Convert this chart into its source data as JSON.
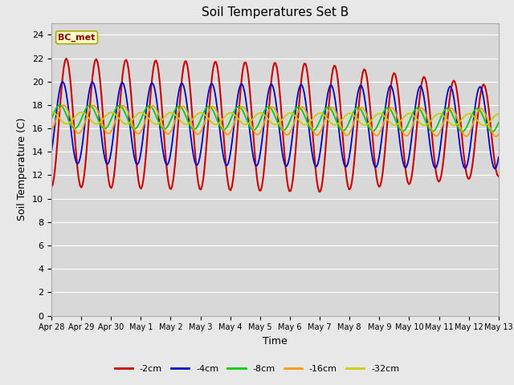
{
  "title": "Soil Temperatures Set B",
  "xlabel": "Time",
  "ylabel": "Soil Temperature (C)",
  "annotation": "BC_met",
  "ylim": [
    0,
    25
  ],
  "yticks": [
    0,
    2,
    4,
    6,
    8,
    10,
    12,
    14,
    16,
    18,
    20,
    22,
    24
  ],
  "xtick_labels": [
    "Apr 28",
    "Apr 29",
    "Apr 30",
    "May 1",
    "May 2",
    "May 3",
    "May 4",
    "May 5",
    "May 6",
    "May 7",
    "May 8",
    "May 9",
    "May 10",
    "May 11",
    "May 12",
    "May 13"
  ],
  "series_colors": [
    "#cc0000",
    "#0000cc",
    "#00cc00",
    "#ff9900",
    "#cccc00"
  ],
  "series_labels": [
    "-2cm",
    "-4cm",
    "-8cm",
    "-16cm",
    "-32cm"
  ],
  "figsize": [
    6.4,
    4.8
  ],
  "dpi": 100,
  "background_color": "#e8e8e8",
  "plot_bg_color": "#d8d8d8",
  "grid_color": "#ffffff",
  "n_days": 15,
  "spd": 24,
  "series": {
    "s2": {
      "mean": 16.5,
      "amp": 5.5,
      "phase": -1.5708,
      "amp_decay": 0.15,
      "decay_day": 9,
      "trend": -0.05
    },
    "s4": {
      "mean": 16.5,
      "amp": 3.5,
      "phase": -0.8,
      "amp_decay": 0.0,
      "decay_day": 99,
      "trend": -0.03
    },
    "s8": {
      "mean": 17.0,
      "amp": 1.0,
      "phase": -0.2,
      "amp_decay": 0.0,
      "decay_day": 99,
      "trend": -0.02
    },
    "s16": {
      "mean": 16.8,
      "amp": 1.2,
      "phase": -1.0,
      "amp_decay": 0.0,
      "decay_day": 99,
      "trend": -0.02
    },
    "s32": {
      "mean": 16.9,
      "amp": 0.5,
      "phase": 1.5,
      "amp_decay": 0.0,
      "decay_day": 99,
      "trend": -0.01
    }
  }
}
